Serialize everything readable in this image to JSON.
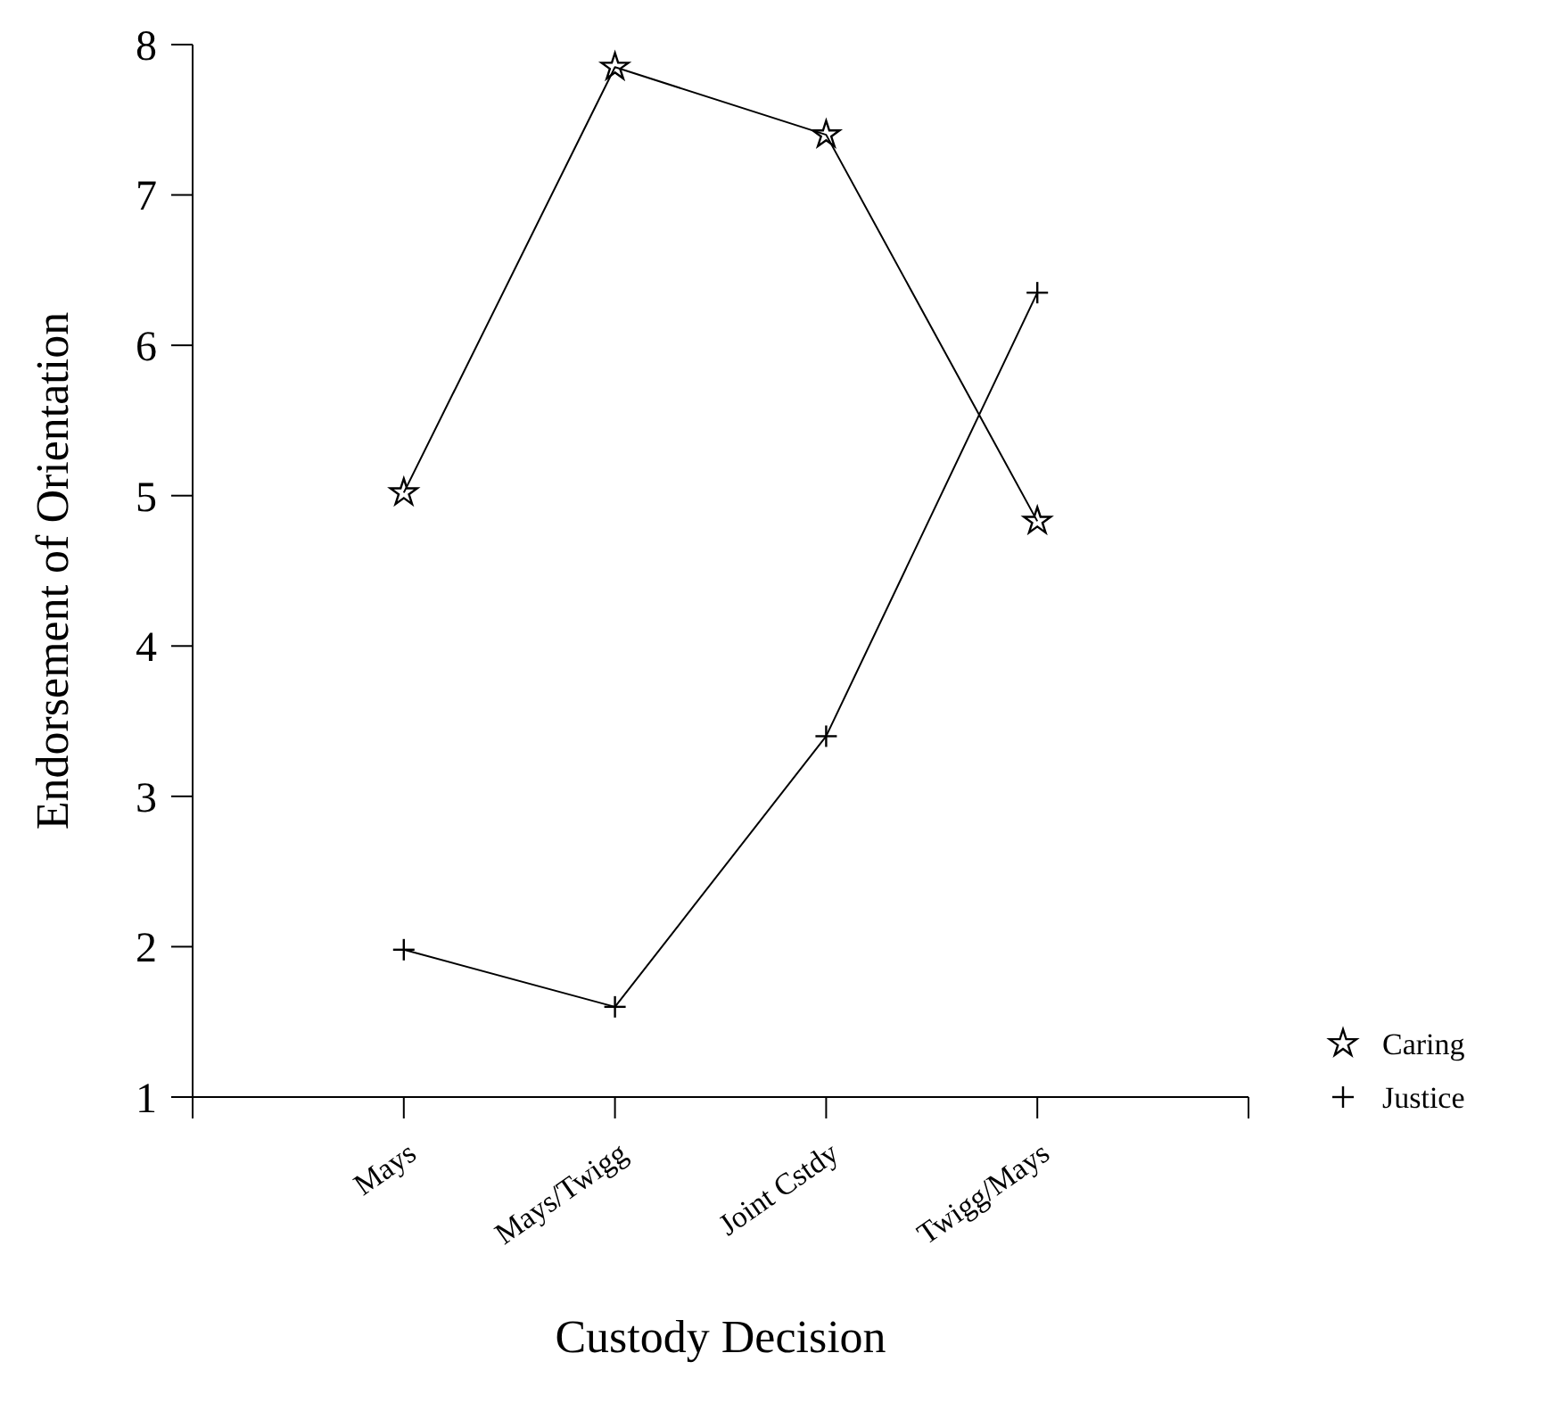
{
  "chart_data": {
    "type": "line",
    "xlabel": "Custody Decision",
    "ylabel": "Endorsement of Orientation",
    "categories": [
      "Mays",
      "Mays/Twigg",
      "Joint Cstdy",
      "Twigg/Mays"
    ],
    "ylim": [
      1,
      8
    ],
    "yticks": [
      1,
      2,
      3,
      4,
      5,
      6,
      7,
      8
    ],
    "grid": false,
    "legend": "bottom right",
    "series": [
      {
        "name": "Caring",
        "color": "#000000",
        "marker": "star",
        "values": [
          5.02,
          7.85,
          7.4,
          4.83
        ]
      },
      {
        "name": "Justice",
        "color": "#000000",
        "marker": "cross",
        "values": [
          1.98,
          1.6,
          3.4,
          6.35
        ]
      }
    ]
  }
}
